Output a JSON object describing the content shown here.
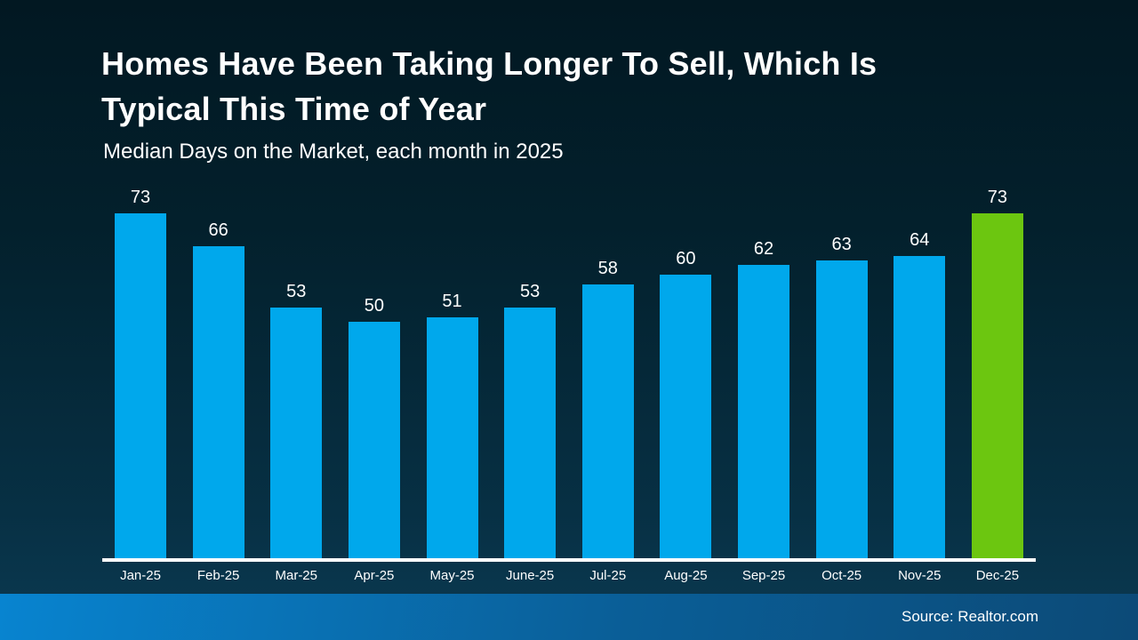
{
  "slide": {
    "title_line1": "Homes Have Been Taking Longer To Sell, Which Is",
    "title_line2": "Typical This Time of Year",
    "subtitle": "Median Days on the Market, each month in 2025",
    "source": "Source: Realtor.com"
  },
  "colors": {
    "bar_blue": "#00A8EC",
    "bar_green": "#6CC610",
    "axis_line": "#FFFFFF",
    "background_top": "#021822",
    "background_bottom": "#0B3A52",
    "footer_left": "#0884D0",
    "footer_right": "#0C4A77",
    "text": "#FFFFFF"
  },
  "chart_data": {
    "type": "bar",
    "title": "Homes Have Been Taking Longer To Sell, Which Is Typical This Time of Year",
    "subtitle": "Median Days on the Market, each month in 2025",
    "categories": [
      "Jan-25",
      "Feb-25",
      "Mar-25",
      "Apr-25",
      "May-25",
      "June-25",
      "Jul-25",
      "Aug-25",
      "Sep-25",
      "Oct-25",
      "Nov-25",
      "Dec-25"
    ],
    "values": [
      73,
      66,
      53,
      50,
      51,
      53,
      58,
      60,
      62,
      63,
      64,
      73
    ],
    "highlight_index": 11,
    "xlabel": "",
    "ylabel": "",
    "ylim": [
      0,
      79
    ],
    "grid": false,
    "legend": "none",
    "data_labels": true,
    "source": "Source: Realtor.com"
  }
}
